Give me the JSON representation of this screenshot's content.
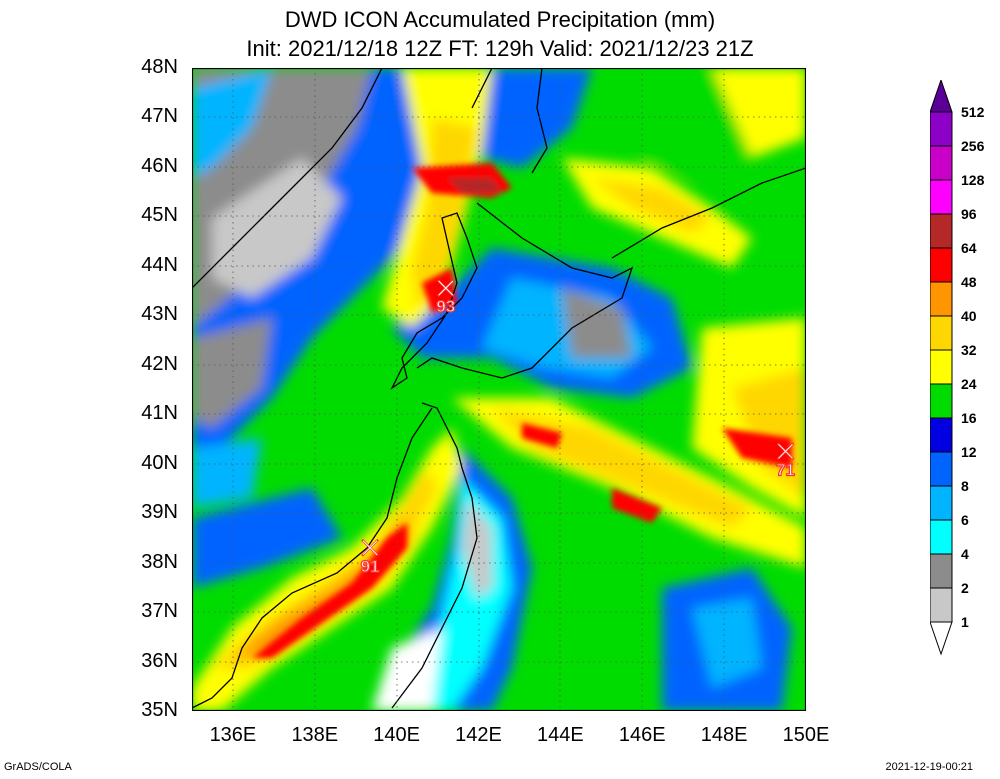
{
  "title": {
    "line1": "DWD ICON Accumulated Precipitation (mm)",
    "line2": "Init: 2021/12/18 12Z  FT: 129h  Valid: 2021/12/23 21Z"
  },
  "map": {
    "lon_range": [
      135,
      150
    ],
    "lat_range": [
      35,
      48
    ],
    "x_ticks": [
      "136E",
      "138E",
      "140E",
      "142E",
      "144E",
      "146E",
      "148E",
      "150E"
    ],
    "x_tick_values": [
      136,
      138,
      140,
      142,
      144,
      146,
      148,
      150
    ],
    "y_ticks": [
      "48N",
      "47N",
      "46N",
      "45N",
      "44N",
      "43N",
      "42N",
      "41N",
      "40N",
      "39N",
      "38N",
      "37N",
      "36N",
      "35N"
    ],
    "y_tick_values": [
      48,
      47,
      46,
      45,
      44,
      43,
      42,
      41,
      40,
      39,
      38,
      37,
      36,
      35
    ],
    "gridlines": "dotted"
  },
  "maxima": [
    {
      "label": "93",
      "lon": 141.2,
      "lat": 43.55
    },
    {
      "label": "91",
      "lon": 139.35,
      "lat": 38.3
    },
    {
      "label": "71",
      "lon": 149.5,
      "lat": 40.25
    }
  ],
  "legend": {
    "levels": [
      "1",
      "2",
      "4",
      "6",
      "8",
      "12",
      "16",
      "24",
      "32",
      "40",
      "48",
      "64",
      "96",
      "128",
      "256",
      "512"
    ],
    "colors": [
      "#ffffff",
      "#c8c8c8",
      "#8c8c8c",
      "#00ffff",
      "#00b4ff",
      "#0064ff",
      "#0000e0",
      "#00dc00",
      "#ffff00",
      "#ffd700",
      "#ff9600",
      "#ff0000",
      "#b42828",
      "#ff00ff",
      "#c800c8",
      "#8c00c8",
      "#5a0096"
    ]
  },
  "footer": {
    "left": "GrADS/COLA",
    "right": "2021-12-19-00:21"
  }
}
